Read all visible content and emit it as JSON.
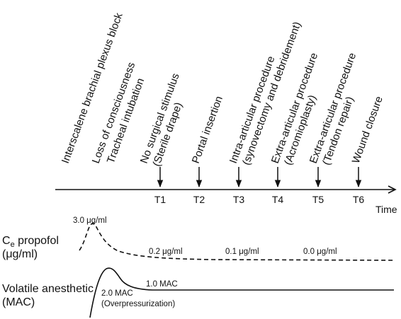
{
  "events": [
    {
      "line1": "Interscalene brachial plexus block",
      "line2": ""
    },
    {
      "line1": "Loss of consciousness",
      "line2": ""
    },
    {
      "line1": "Tracheal intubation",
      "line2": ""
    },
    {
      "line1": "No surgical stimulus",
      "line2": "(Sterile drape)"
    },
    {
      "line1": "Portal insertion",
      "line2": ""
    },
    {
      "line1": "Intra-articular procedure",
      "line2": "(synovectomy and debridement)"
    },
    {
      "line1": "Extra-articular procedure",
      "line2": "(Acromioplasty)"
    },
    {
      "line1": "Extra-articular procedure",
      "line2": "(Tendon repair)"
    },
    {
      "line1": "Wound closure",
      "line2": ""
    }
  ],
  "timepoints": [
    "T1",
    "T2",
    "T3",
    "T4",
    "T5",
    "T6"
  ],
  "time_label": "Time",
  "propofol": {
    "label_line1": "C",
    "label_sub": "e",
    "label_line1_rest": " propofol",
    "label_line2": "(μg/ml)",
    "peak": "3.0 μg/ml",
    "values": [
      "0.2 μg/ml",
      "0.1 μg/ml",
      "0.0 μg/ml"
    ]
  },
  "volatile": {
    "label_line1": "Volatile anesthetic",
    "label_line2": "(MAC)",
    "steady": "1.0 MAC",
    "peak": "2.0 MAC",
    "peak_note": "(Overpressurization)"
  }
}
